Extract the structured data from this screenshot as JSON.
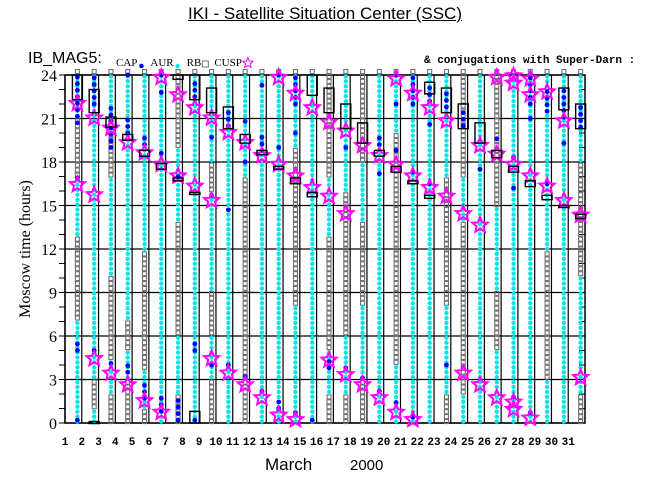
{
  "title": "IKI - Satellite Situation Center (SSC)",
  "instrument": "IB_MAG5:",
  "conjugation_note": "& conjugations with Super-Darn :",
  "colors": {
    "CAP": "#0000ff",
    "AUR": "#00e5e5",
    "RB": "#707070",
    "CUSP": "#ff00ff",
    "conjugation_box": "#000000"
  },
  "chart_data": {
    "type": "scatter",
    "title": "IKI - Satellite Situation Center (SSC)",
    "ylabel": "Moscow time (hours)",
    "xlabel_month": "March",
    "xlabel_year": "2000",
    "ylim": [
      0,
      24
    ],
    "yticks": [
      0,
      3,
      6,
      9,
      12,
      15,
      18,
      21,
      24
    ],
    "xticks": [
      1,
      2,
      3,
      4,
      5,
      6,
      7,
      8,
      9,
      10,
      11,
      12,
      13,
      14,
      15,
      16,
      17,
      18,
      19,
      20,
      21,
      22,
      23,
      24,
      25,
      26,
      27,
      28,
      29,
      30,
      31
    ],
    "grid": true,
    "legend": [
      {
        "name": "CAP",
        "symbol": "dot"
      },
      {
        "name": "AUR",
        "symbol": "asterisk"
      },
      {
        "name": "RB",
        "symbol": "square"
      },
      {
        "name": "CUSP",
        "symbol": "star"
      }
    ],
    "days": [
      {
        "day": 1,
        "box": [
          [
            22.3,
            24
          ]
        ],
        "cusp": [
          21.9,
          16.3
        ],
        "cap": [
          [
            20.7,
            24
          ],
          [
            16.9,
            16.9
          ],
          [
            5.0,
            5.7
          ],
          [
            0.2,
            0.2
          ]
        ],
        "aur": [
          [
            0,
            7
          ],
          [
            13,
            17
          ],
          [
            21,
            24
          ]
        ]
      },
      {
        "day": 2,
        "box": [
          [
            21.4,
            23.0
          ],
          [
            0,
            0.1
          ]
        ],
        "cusp": [
          20.9,
          15.6,
          4.3
        ],
        "cap": [
          [
            22,
            24
          ],
          [
            5,
            5
          ]
        ],
        "aur": [
          [
            0,
            1
          ],
          [
            3,
            24
          ]
        ]
      },
      {
        "day": 3,
        "box": [
          [
            20.4,
            21.1
          ]
        ],
        "cusp": [
          20.2,
          3.3
        ],
        "cap": [
          [
            19,
            21.7
          ],
          [
            4.1,
            4.3
          ]
        ],
        "aur": [
          [
            2,
            4.5
          ],
          [
            10,
            17
          ],
          [
            21,
            24
          ]
        ]
      },
      {
        "day": 4,
        "box": [
          [
            19.5,
            19.9
          ]
        ],
        "cusp": [
          19.2,
          2.5
        ],
        "cap": [
          [
            20,
            21
          ],
          [
            24,
            24
          ],
          [
            3.5,
            4
          ]
        ],
        "aur": [
          [
            3,
            5
          ],
          [
            7,
            24
          ]
        ]
      },
      {
        "day": 5,
        "box": [
          [
            18.4,
            18.8
          ]
        ],
        "cusp": [
          18.5,
          1.4
        ],
        "cap": [
          [
            19.2,
            19.7
          ],
          [
            1.7,
            2.7
          ]
        ],
        "aur": [
          [
            1,
            3.5
          ],
          [
            12,
            24
          ]
        ]
      },
      {
        "day": 6,
        "box": [
          [
            17.5,
            17.9
          ]
        ],
        "cusp": [
          23.7,
          17.7,
          0.6
        ],
        "cap": [
          [
            24,
            24
          ],
          [
            22.8,
            22.8
          ],
          [
            18.6,
            18.9
          ],
          [
            0.8,
            1.8
          ]
        ],
        "aur": [
          [
            0,
            24
          ]
        ]
      },
      {
        "day": 7,
        "box": [
          [
            23.7,
            24
          ],
          [
            16.7,
            16.9
          ]
        ],
        "cusp": [
          22.5,
          16.9
        ],
        "cap": [
          [
            17,
            17
          ],
          [
            0.2,
            1.7
          ]
        ],
        "aur": [
          [
            2,
            6
          ],
          [
            14,
            19
          ]
        ]
      },
      {
        "day": 8,
        "box": [
          [
            22.3,
            24
          ],
          [
            15.8,
            15.9
          ],
          [
            0,
            0.8
          ]
        ],
        "cusp": [
          21.6,
          16.2
        ],
        "cap": [
          [
            22.5,
            23.5
          ],
          [
            5,
            5.5
          ],
          [
            0.2,
            0.2
          ]
        ],
        "aur": [
          [
            0,
            24
          ]
        ]
      },
      {
        "day": 9,
        "box": [
          [
            21.4,
            23.1
          ]
        ],
        "cusp": [
          20.9,
          15.2,
          4.3
        ],
        "cap": [
          [
            19.7,
            19.7
          ],
          [
            15.7,
            15.7
          ],
          [
            4,
            4
          ]
        ],
        "aur": [
          [
            3,
            6
          ],
          [
            9,
            16
          ],
          [
            18,
            24
          ]
        ]
      },
      {
        "day": 10,
        "box": [
          [
            20.3,
            21.8
          ]
        ],
        "cusp": [
          19.9,
          3.3
        ],
        "cap": [
          [
            20.5,
            21.5
          ],
          [
            14.7,
            14.7
          ],
          [
            4,
            4
          ]
        ],
        "aur": [
          [
            0,
            24
          ]
        ]
      },
      {
        "day": 11,
        "box": [
          [
            19.3,
            19.9
          ]
        ],
        "cusp": [
          19.2,
          2.5
        ],
        "cap": [
          [
            18,
            18
          ],
          [
            20.8,
            20.8
          ],
          [
            3.2,
            3.2
          ]
        ],
        "aur": [
          [
            17,
            24
          ]
        ]
      },
      {
        "day": 12,
        "box": [
          [
            18.5,
            18.8
          ]
        ],
        "cusp": [
          18.3,
          1.6
        ],
        "cap": [
          [
            23.3,
            23.3
          ],
          [
            18.8,
            19.8
          ],
          [
            2.2,
            2.6
          ]
        ],
        "aur": [
          [
            0,
            24
          ]
        ]
      },
      {
        "day": 13,
        "box": [
          [
            17.5,
            17.7
          ]
        ],
        "cusp": [
          23.7,
          17.7,
          0.4
        ],
        "cap": [
          [
            24,
            24
          ],
          [
            19,
            19
          ],
          [
            1,
            1.7
          ]
        ],
        "aur": [
          [
            0,
            24
          ]
        ]
      },
      {
        "day": 14,
        "box": [
          [
            16.5,
            16.9
          ]
        ],
        "cusp": [
          22.6,
          16.9,
          0.1
        ],
        "cap": [
          [
            22,
            24
          ],
          [
            20,
            20
          ],
          [
            0.7,
            0.7
          ]
        ],
        "aur": [
          [
            0,
            8
          ],
          [
            19,
            24
          ]
        ]
      },
      {
        "day": 15,
        "box": [
          [
            22.6,
            24
          ],
          [
            15.6,
            15.9
          ]
        ],
        "cusp": [
          21.6,
          16.1
        ],
        "cap": [
          [
            0.2,
            0.2
          ]
        ],
        "aur": [
          [
            0,
            24
          ]
        ]
      },
      {
        "day": 16,
        "box": [
          [
            21.4,
            23.1
          ]
        ],
        "cusp": [
          20.6,
          15.5,
          4.2
        ],
        "cap": [
          [
            3.8,
            4.5
          ]
        ],
        "aur": [
          [
            2,
            5
          ],
          [
            13,
            17
          ]
        ]
      },
      {
        "day": 17,
        "box": [
          [
            20.3,
            22
          ]
        ],
        "cusp": [
          20,
          14.3,
          3.2
        ],
        "cap": [
          [
            19,
            19
          ],
          [
            3.8,
            3.8
          ]
        ],
        "aur": [
          [
            2,
            6
          ],
          [
            16,
            24
          ]
        ]
      },
      {
        "day": 18,
        "box": [
          [
            19.3,
            20.7
          ]
        ],
        "cusp": [
          19,
          2.5
        ],
        "cap": [
          [
            3.1,
            3.1
          ]
        ],
        "aur": [
          [
            3,
            8
          ],
          [
            14,
            18
          ]
        ]
      },
      {
        "day": 19,
        "box": [
          [
            18.4,
            18.8
          ]
        ],
        "cusp": [
          18.3,
          1.6
        ],
        "cap": [
          [
            19.2,
            19.7
          ],
          [
            17.2,
            17.2
          ],
          [
            2.2,
            2.2
          ]
        ],
        "aur": [
          [
            0,
            24
          ]
        ]
      },
      {
        "day": 20,
        "box": [
          [
            17.3,
            17.7
          ]
        ],
        "cusp": [
          23.6,
          17.7,
          0.6
        ],
        "cap": [
          [
            24,
            24
          ],
          [
            22,
            22
          ],
          [
            18.8,
            18.8
          ],
          [
            1.4,
            1.4
          ]
        ],
        "aur": [
          [
            0,
            4
          ],
          [
            20,
            24
          ]
        ]
      },
      {
        "day": 21,
        "box": [
          [
            16.5,
            16.7
          ]
        ],
        "cusp": [
          22.6,
          16.9,
          0.1
        ],
        "cap": [
          [
            22,
            24
          ],
          [
            17.3,
            17.3
          ],
          [
            0.4,
            0.8
          ]
        ],
        "aur": [
          [
            0,
            24
          ]
        ]
      },
      {
        "day": 22,
        "box": [
          [
            22.7,
            23.5
          ],
          [
            15.5,
            15.7
          ]
        ],
        "cusp": [
          21.6,
          16.1
        ],
        "cap": [
          [
            22.2,
            23.3
          ],
          [
            20.6,
            20.6
          ],
          [
            16.5,
            16.5
          ]
        ],
        "aur": [
          [
            0,
            24
          ]
        ]
      },
      {
        "day": 23,
        "box": [
          [
            21.4,
            23.1
          ]
        ],
        "cusp": [
          20.7,
          15.5
        ],
        "cap": [
          [
            21.8,
            23
          ],
          [
            4,
            4.3
          ]
        ],
        "aur": [
          [
            2,
            8
          ],
          [
            17,
            24
          ]
        ]
      },
      {
        "day": 24,
        "box": [
          [
            20.3,
            22
          ]
        ],
        "cusp": [
          14.3,
          3.3
        ],
        "cap": [
          [
            20.5,
            21.5
          ]
        ],
        "aur": [
          [
            0,
            2
          ],
          [
            14,
            17
          ]
        ]
      },
      {
        "day": 25,
        "box": [
          [
            19.3,
            20.7
          ]
        ],
        "cusp": [
          19,
          13.5,
          2.5
        ],
        "cap": [
          [
            17.5,
            17.5
          ]
        ],
        "aur": [
          [
            0,
            24
          ]
        ]
      },
      {
        "day": 26,
        "box": [
          [
            18.3,
            18.8
          ]
        ],
        "cusp": [
          23.7,
          18.4,
          1.6
        ],
        "cap": [
          [
            19.6,
            19.6
          ]
        ],
        "aur": [
          [
            0,
            5
          ],
          [
            9,
            15
          ]
        ]
      },
      {
        "day": 27,
        "box": [
          [
            17.3,
            17.7
          ]
        ],
        "cusp": [
          23.8,
          23.3,
          17.7,
          1.3,
          0.8
        ],
        "cap": [
          [
            18.3,
            18.3
          ],
          [
            16.2,
            16.2
          ],
          [
            1.8,
            1.8
          ]
        ],
        "aur": [
          [
            0,
            24
          ]
        ]
      },
      {
        "day": 28,
        "box": [
          [
            16.3,
            16.7
          ]
        ],
        "cusp": [
          23.6,
          22.5,
          16.9,
          0.2
        ],
        "cap": [
          [
            22,
            24
          ],
          [
            21,
            21
          ],
          [
            0.7,
            0.7
          ]
        ],
        "aur": [
          [
            0,
            24
          ]
        ]
      },
      {
        "day": 29,
        "box": [
          [
            15.4,
            15.7
          ]
        ],
        "cusp": [
          22.7,
          16.2
        ],
        "cap": [
          [
            21.5,
            23
          ],
          [
            16.5,
            16.5
          ]
        ],
        "aur": [
          [
            0,
            3
          ],
          [
            12,
            24
          ]
        ]
      },
      {
        "day": 30,
        "box": [
          [
            21.6,
            23.1
          ],
          [
            15,
            15
          ]
        ],
        "cusp": [
          20.7,
          15.2
        ],
        "cap": [
          [
            21.1,
            23
          ],
          [
            19.3,
            19.3
          ]
        ],
        "aur": [
          [
            0,
            24
          ]
        ]
      },
      {
        "day": 31,
        "box": [
          [
            20.3,
            22
          ],
          [
            14.1,
            14.4
          ]
        ],
        "cusp": [
          14.2,
          3.0
        ],
        "cap": [
          [
            20.4,
            21.8
          ]
        ],
        "aur": [
          [
            2,
            10
          ],
          [
            18,
            24
          ]
        ]
      }
    ]
  }
}
